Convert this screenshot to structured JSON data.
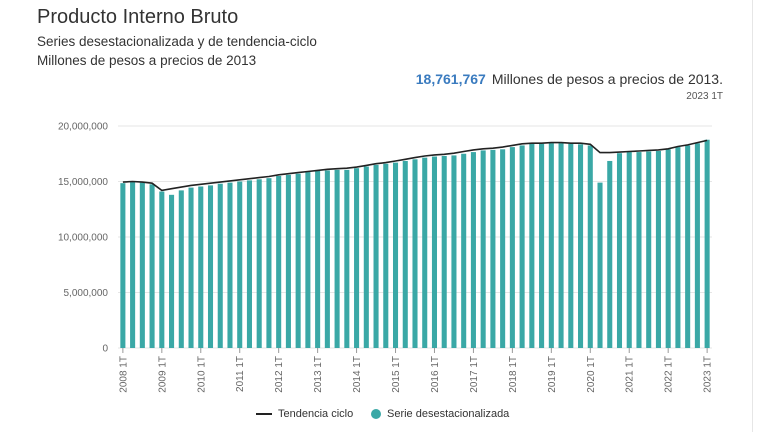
{
  "title": "Producto Interno Bruto",
  "subtitle_1": "Series desestacionalizada y de tendencia-ciclo",
  "subtitle_2": "Millones de pesos a precios de 2013",
  "headline": {
    "value": "18,761,767",
    "unit": "Millones de pesos a precios de 2013.",
    "period": "2023 1T"
  },
  "colors": {
    "bars": "#3aa8a6",
    "trend": "#222222",
    "grid": "#e6e6e6",
    "axis_text": "#666666"
  },
  "chart_data": {
    "type": "bar",
    "categories": [
      "2008 1T",
      "2008 2T",
      "2008 3T",
      "2008 4T",
      "2009 1T",
      "2009 2T",
      "2009 3T",
      "2009 4T",
      "2010 1T",
      "2010 2T",
      "2010 3T",
      "2010 4T",
      "2011 1T",
      "2011 2T",
      "2011 3T",
      "2011 4T",
      "2012 1T",
      "2012 2T",
      "2012 3T",
      "2012 4T",
      "2013 1T",
      "2013 2T",
      "2013 3T",
      "2013 4T",
      "2014 1T",
      "2014 2T",
      "2014 3T",
      "2014 4T",
      "2015 1T",
      "2015 2T",
      "2015 3T",
      "2015 4T",
      "2016 1T",
      "2016 2T",
      "2016 3T",
      "2016 4T",
      "2017 1T",
      "2017 2T",
      "2017 3T",
      "2017 4T",
      "2018 1T",
      "2018 2T",
      "2018 3T",
      "2018 4T",
      "2019 1T",
      "2019 2T",
      "2019 3T",
      "2019 4T",
      "2020 1T",
      "2020 2T",
      "2020 3T",
      "2020 4T",
      "2021 1T",
      "2021 2T",
      "2021 3T",
      "2021 4T",
      "2022 1T",
      "2022 2T",
      "2022 3T",
      "2022 4T",
      "2023 1T"
    ],
    "x_tick_labels": [
      "2008 1T",
      "2009 1T",
      "2010 1T",
      "2011 1T",
      "2012 1T",
      "2013 1T",
      "2014 1T",
      "2015 1T",
      "2016 1T",
      "2017 1T",
      "2018 1T",
      "2019 1T",
      "2020 1T",
      "2021 1T",
      "2022 1T",
      "2023 1T"
    ],
    "series": [
      {
        "name": "Serie desestacionalizada",
        "type": "bar",
        "values": [
          14850000,
          14950000,
          14900000,
          14750000,
          14100000,
          13800000,
          14200000,
          14450000,
          14550000,
          14650000,
          14800000,
          14900000,
          15000000,
          15100000,
          15200000,
          15300000,
          15500000,
          15600000,
          15700000,
          15850000,
          15950000,
          16000000,
          16050000,
          16050000,
          16200000,
          16350000,
          16500000,
          16600000,
          16700000,
          16850000,
          17000000,
          17150000,
          17250000,
          17300000,
          17350000,
          17500000,
          17650000,
          17800000,
          17850000,
          17900000,
          18100000,
          18250000,
          18400000,
          18400000,
          18450000,
          18450000,
          18400000,
          18350000,
          18250000,
          14900000,
          16850000,
          17550000,
          17650000,
          17650000,
          17700000,
          17750000,
          17900000,
          18100000,
          18250000,
          18450000,
          18761767
        ]
      },
      {
        "name": "Tendencia ciclo",
        "type": "line",
        "values": [
          14950000,
          15000000,
          14950000,
          14850000,
          14200000,
          14350000,
          14500000,
          14650000,
          14750000,
          14850000,
          14950000,
          15050000,
          15150000,
          15250000,
          15350000,
          15450000,
          15600000,
          15700000,
          15800000,
          15900000,
          16000000,
          16100000,
          16150000,
          16200000,
          16300000,
          16450000,
          16600000,
          16700000,
          16850000,
          17000000,
          17150000,
          17300000,
          17400000,
          17450000,
          17550000,
          17700000,
          17850000,
          17950000,
          18000000,
          18100000,
          18250000,
          18400000,
          18450000,
          18450000,
          18500000,
          18500000,
          18450000,
          18450000,
          18350000,
          17600000,
          17600000,
          17650000,
          17700000,
          17750000,
          17800000,
          17850000,
          17950000,
          18150000,
          18300000,
          18500000,
          18700000
        ]
      }
    ],
    "y_ticks": [
      0,
      5000000,
      10000000,
      15000000,
      20000000
    ],
    "y_tick_labels": [
      "0",
      "5,000,000",
      "10,000,000",
      "15,000,000",
      "20,000,000"
    ],
    "ylim": [
      0,
      20000000
    ],
    "grid": true,
    "legend_position": "bottom-center"
  },
  "legend": {
    "trend_label": "Tendencia ciclo",
    "bars_label": "Serie desestacionalizada"
  }
}
